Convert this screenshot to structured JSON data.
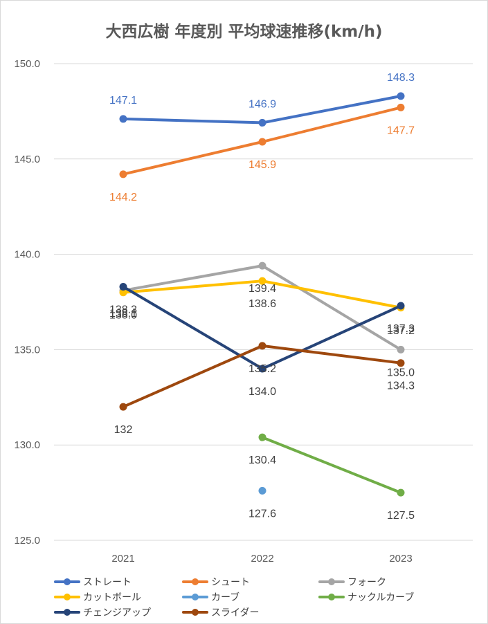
{
  "chart_data": {
    "type": "line",
    "title": "大西広樹 年度別 平均球速推移(km/h)",
    "xlabel": "",
    "ylabel": "",
    "x": [
      "2021",
      "2022",
      "2023"
    ],
    "ylim": [
      125.0,
      150.0
    ],
    "yticks": [
      "125.0",
      "130.0",
      "135.0",
      "140.0",
      "145.0",
      "150.0"
    ],
    "grid": true,
    "legend_position": "bottom",
    "series": [
      {
        "name": "ストレート",
        "color": "#4472c4",
        "values": [
          147.1,
          146.9,
          148.3
        ],
        "labels": [
          "147.1",
          "146.9",
          "148.3"
        ]
      },
      {
        "name": "シュート",
        "color": "#ed7d31",
        "values": [
          144.2,
          145.9,
          147.7
        ],
        "labels": [
          "144.2",
          "145.9",
          "147.7"
        ]
      },
      {
        "name": "フォーク",
        "color": "#a5a5a5",
        "values": [
          138.1,
          139.4,
          135.0
        ],
        "labels": [
          "138.1",
          "139.4",
          "135.0"
        ]
      },
      {
        "name": "カットボール",
        "color": "#ffc000",
        "values": [
          138.0,
          138.6,
          137.2
        ],
        "labels": [
          "138.0",
          "138.6",
          "137.2"
        ]
      },
      {
        "name": "カーブ",
        "color": "#5b9bd5",
        "values": [
          null,
          127.6,
          null
        ],
        "labels": [
          null,
          "127.6",
          null
        ]
      },
      {
        "name": "ナックルカーブ",
        "color": "#70ad47",
        "values": [
          null,
          130.4,
          127.5
        ],
        "labels": [
          null,
          "130.4",
          "127.5"
        ]
      },
      {
        "name": "チェンジアップ",
        "color": "#264478",
        "values": [
          138.3,
          134.0,
          137.3
        ],
        "labels": [
          "138.3",
          "134.0",
          "137.3"
        ]
      },
      {
        "name": "スライダー",
        "color": "#9e480e",
        "values": [
          132.0,
          135.2,
          134.3
        ],
        "labels": [
          "132",
          "135.2",
          "134.3"
        ]
      }
    ]
  }
}
